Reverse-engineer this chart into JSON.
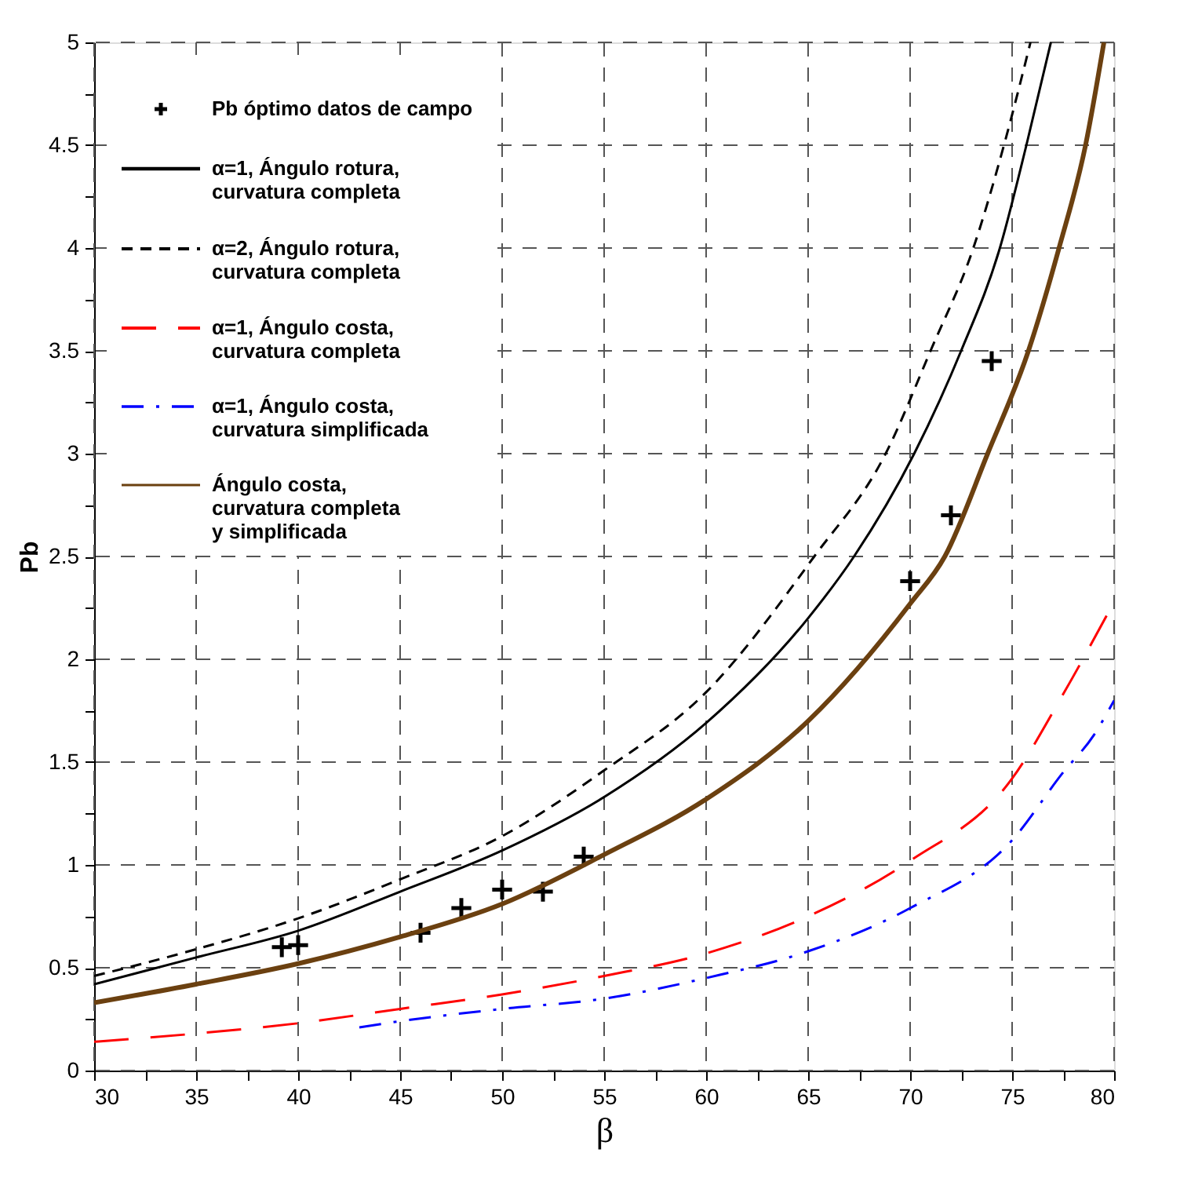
{
  "chart_data": {
    "type": "line",
    "xlabel": "β",
    "ylabel": "Pb",
    "xlim": [
      30,
      80
    ],
    "ylim": [
      0,
      5
    ],
    "xticks": [
      30,
      {
        "value": 32.5,
        "label": null
      },
      35,
      {
        "value": 37.5,
        "label": null
      },
      40,
      {
        "value": 42.5,
        "label": null
      },
      45,
      {
        "value": 47.5,
        "label": null
      },
      50,
      {
        "value": 52.5,
        "label": null
      },
      55,
      {
        "value": 57.5,
        "label": null
      },
      60,
      {
        "value": 62.5,
        "label": null
      },
      65,
      {
        "value": 67.5,
        "label": null
      },
      70,
      {
        "value": 72.5,
        "label": null
      },
      75,
      {
        "value": 77.5,
        "label": null
      },
      80
    ],
    "yticks": [
      0,
      {
        "value": 0.25,
        "label": null
      },
      0.5,
      {
        "value": 0.75,
        "label": null
      },
      1,
      {
        "value": 1.25,
        "label": null
      },
      1.5,
      {
        "value": 1.75,
        "label": null
      },
      2,
      {
        "value": 2.25,
        "label": null
      },
      2.5,
      {
        "value": 2.75,
        "label": null
      },
      3,
      {
        "value": 3.25,
        "label": null
      },
      3.5,
      {
        "value": 3.75,
        "label": null
      },
      4,
      {
        "value": 4.25,
        "label": null
      },
      4.5,
      {
        "value": 4.75,
        "label": null
      },
      5
    ],
    "grid": true,
    "legend": "top left",
    "series": [
      {
        "name": "Pb óptimo datos de campo",
        "type": "scatter",
        "marker": "cross",
        "color": "#000000",
        "x": [
          39.2,
          40,
          46,
          48,
          50,
          52,
          54,
          70,
          72,
          74
        ],
        "values": [
          0.6,
          0.61,
          0.67,
          0.79,
          0.88,
          0.87,
          1.04,
          2.38,
          2.7,
          3.45
        ]
      },
      {
        "name": "α=1, Ángulo rotura,\ncurvatura completa",
        "type": "line",
        "line_style": "solid",
        "color": "#000000",
        "x": [
          30,
          35,
          40,
          45,
          50,
          55,
          60,
          65,
          67.25,
          70.2,
          72.5,
          74.4,
          75.7,
          76.9
        ],
        "values": [
          0.42,
          0.55,
          0.68,
          0.87,
          1.07,
          1.33,
          1.69,
          2.2,
          2.5,
          3.0,
          3.5,
          4.0,
          4.5,
          5.0
        ]
      },
      {
        "name": "α=2, Ángulo rotura,\ncurvatura completa",
        "type": "line",
        "line_style": "dashed",
        "color": "#000000",
        "x": [
          30,
          35,
          40,
          45,
          50,
          55,
          60,
          65.3,
          68.8,
          71,
          73.1,
          74.6,
          75.9
        ],
        "values": [
          0.46,
          0.59,
          0.74,
          0.93,
          1.14,
          1.46,
          1.84,
          2.5,
          3.0,
          3.5,
          4.0,
          4.5,
          5.0
        ]
      },
      {
        "name": "α=1, Ángulo costa,\ncurvatura completa",
        "type": "line",
        "line_style": "dashed",
        "color": "#ff0000",
        "x": [
          30,
          35,
          40,
          45,
          50,
          55,
          60,
          65,
          70,
          75,
          77.5,
          80
        ],
        "values": [
          0.14,
          0.18,
          0.23,
          0.3,
          0.37,
          0.46,
          0.57,
          0.75,
          1.02,
          1.42,
          1.83,
          2.28
        ]
      },
      {
        "name": "α=1, Ángulo costa,\ncurvatura simplificada",
        "type": "line",
        "line_style": "dashdot",
        "color": "#0000ff",
        "x": [
          43,
          45,
          50,
          55,
          60,
          65,
          70,
          75,
          77.5,
          79,
          80
        ],
        "values": [
          0.21,
          0.24,
          0.3,
          0.35,
          0.45,
          0.58,
          0.79,
          1.12,
          1.45,
          1.63,
          1.8
        ]
      },
      {
        "name": "Ángulo costa,\ncurvatura completa\ny simplificada",
        "type": "line",
        "line_style": "solid",
        "color": "#6b4010",
        "x": [
          30,
          35,
          40,
          45,
          50,
          55,
          60,
          65,
          70,
          71.7,
          73.8,
          75.8,
          77.3,
          78.6,
          79.5
        ],
        "values": [
          0.33,
          0.42,
          0.52,
          0.65,
          0.81,
          1.05,
          1.32,
          1.7,
          2.27,
          2.5,
          3.0,
          3.5,
          4.0,
          4.5,
          5.0
        ]
      }
    ]
  }
}
